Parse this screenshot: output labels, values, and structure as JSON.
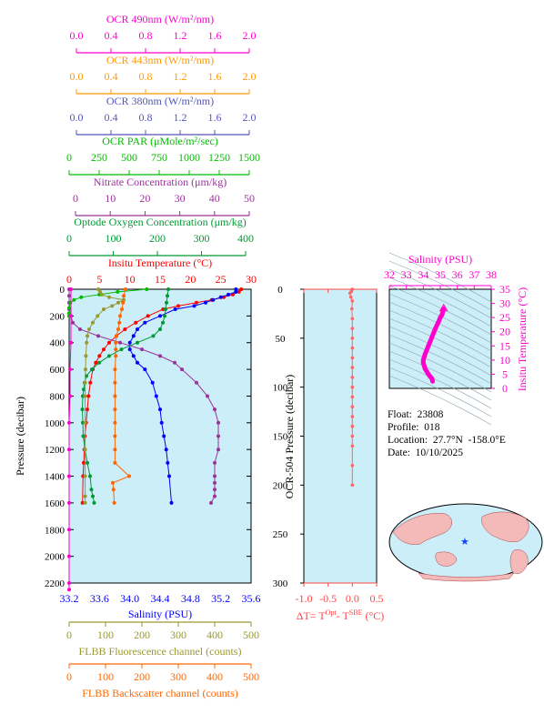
{
  "colors": {
    "ocr490": "#ff00cc",
    "ocr443": "#ff9900",
    "ocr380": "#5555bb",
    "par": "#00bb00",
    "nitrate": "#993399",
    "oxygen": "#009933",
    "temperature": "#ff0000",
    "salinity": "#0000ff",
    "fluor": "#999933",
    "backscatter": "#ff6600",
    "plot_bg": "#cceef8"
  },
  "top_axes": [
    {
      "key": "ocr490",
      "label": "OCR 490nm (W/m²/nm)",
      "ticks": [
        "0.0",
        "0.4",
        "0.8",
        "1.2",
        "1.6",
        "2.0"
      ]
    },
    {
      "key": "ocr443",
      "label": "OCR 443nm (W/m²/nm)",
      "ticks": [
        "0.0",
        "0.4",
        "0.8",
        "1.2",
        "1.6",
        "2.0"
      ]
    },
    {
      "key": "ocr380",
      "label": "OCR 380nm (W/m²/nm)",
      "ticks": [
        "0.0",
        "0.4",
        "0.8",
        "1.2",
        "1.6",
        "2.0"
      ]
    },
    {
      "key": "par",
      "label": "OCR PAR (μMole/m²/sec)",
      "ticks": [
        "0",
        "250",
        "500",
        "750",
        "1000",
        "1250",
        "1500"
      ]
    },
    {
      "key": "nitrate",
      "label": "Nitrate Concentration (μm/kg)",
      "ticks": [
        "0",
        "10",
        "20",
        "30",
        "40",
        "50"
      ]
    },
    {
      "key": "oxygen",
      "label": "Optode Oxygen Concentration (μm/kg)",
      "ticks": [
        "0",
        "100",
        "200",
        "300",
        "400"
      ]
    },
    {
      "key": "temperature",
      "label": "Insitu Temperature (°C)",
      "ticks": [
        "0",
        "5",
        "10",
        "15",
        "20",
        "25",
        "30"
      ]
    }
  ],
  "bottom_axes": [
    {
      "key": "salinity",
      "label": "Salinity (PSU)",
      "ticks": [
        "33.2",
        "33.6",
        "34.0",
        "34.4",
        "34.8",
        "35.2",
        "35.6"
      ]
    },
    {
      "key": "fluor",
      "label": "FLBB Fluorescence channel (counts)",
      "ticks": [
        "0",
        "100",
        "200",
        "300",
        "400",
        "500"
      ]
    },
    {
      "key": "backscatter",
      "label": "FLBB Backscatter channel (counts)",
      "ticks": [
        "0",
        "100",
        "200",
        "300",
        "400",
        "500"
      ]
    }
  ],
  "left_axis": {
    "label": "Pressure (decibar)",
    "ticks": [
      "0",
      "200",
      "400",
      "600",
      "800",
      "1000",
      "1200",
      "1400",
      "1600",
      "1800",
      "2000",
      "2200"
    ]
  },
  "mid_panel": {
    "ylabel": "OCR-504 Pressure (decibar)",
    "yticks": [
      "0",
      "50",
      "100",
      "150",
      "200",
      "250",
      "300"
    ],
    "xticks": [
      "-1.0",
      "-0.5",
      "0.0",
      "0.5"
    ],
    "xlabel_parts": [
      "ΔT= T",
      "Opt",
      "- T",
      "SBE",
      " (°C)"
    ]
  },
  "ts_panel": {
    "title": "Salinity (PSU)",
    "xticks": [
      "32",
      "33",
      "34",
      "35",
      "36",
      "37",
      "38"
    ],
    "yticks": [
      "0",
      "5",
      "10",
      "15",
      "20",
      "25",
      "30",
      "35"
    ],
    "ylabel": "Insitu Temperature (°C)"
  },
  "info": {
    "float": "Float:  23808",
    "profile": "Profile:  018",
    "location": "Location:  27.7°N  -158.0°E",
    "date": "Date:  10/10/2025"
  },
  "chart_data": [
    {
      "type": "line",
      "y_axis": "Pressure (decibar)",
      "ylim": [
        2200,
        0
      ],
      "series": [
        {
          "name": "Insitu Temperature (°C)",
          "x_range": [
            0,
            30
          ],
          "x": [
            28.4,
            28.0,
            27.0,
            25.5,
            23.5,
            21.0,
            18.0,
            15.5,
            13.0,
            11.0,
            9.2,
            7.8,
            6.6,
            5.7,
            5.0,
            4.4,
            3.9,
            3.5,
            3.2,
            3.0,
            2.8,
            2.6,
            2.5,
            2.4,
            2.3,
            2.2
          ],
          "y": [
            0,
            20,
            40,
            60,
            80,
            100,
            125,
            150,
            200,
            250,
            300,
            350,
            400,
            450,
            500,
            550,
            600,
            700,
            800,
            900,
            1000,
            1100,
            1200,
            1300,
            1400,
            1600
          ]
        },
        {
          "name": "Salinity (PSU)",
          "x_range": [
            33.2,
            35.6
          ],
          "x": [
            35.4,
            35.4,
            35.3,
            35.2,
            35.1,
            35.0,
            34.85,
            34.6,
            34.4,
            34.2,
            34.1,
            34.05,
            34.0,
            34.0,
            34.05,
            34.1,
            34.2,
            34.3,
            34.35,
            34.4,
            34.42,
            34.45,
            34.48,
            34.5,
            34.52,
            34.55
          ],
          "y": [
            0,
            20,
            40,
            60,
            80,
            100,
            125,
            150,
            200,
            250,
            300,
            350,
            400,
            450,
            500,
            550,
            600,
            700,
            800,
            900,
            1000,
            1100,
            1200,
            1300,
            1400,
            1600
          ]
        },
        {
          "name": "Nitrate Concentration (μm/kg)",
          "x_range": [
            0,
            50
          ],
          "x": [
            0,
            0,
            0,
            0,
            0.5,
            1,
            3,
            8,
            14,
            20,
            25,
            29,
            31,
            35,
            38,
            40,
            41,
            41,
            41,
            40,
            40,
            40,
            40,
            40,
            39
          ],
          "y": [
            0,
            50,
            100,
            150,
            200,
            250,
            300,
            350,
            400,
            450,
            500,
            550,
            600,
            700,
            800,
            900,
            1000,
            1100,
            1200,
            1300,
            1400,
            1450,
            1500,
            1550,
            1600
          ]
        },
        {
          "name": "Optode Oxygen Concentration (μm/kg)",
          "x_range": [
            0,
            400
          ],
          "x": [
            218,
            216,
            214,
            212,
            210,
            206,
            200,
            185,
            150,
            115,
            88,
            66,
            50,
            38,
            34,
            32,
            30,
            29,
            30,
            31,
            35,
            40,
            46,
            49,
            52,
            55
          ],
          "y": [
            0,
            50,
            100,
            150,
            200,
            250,
            300,
            350,
            400,
            450,
            500,
            550,
            600,
            650,
            700,
            750,
            800,
            900,
            1000,
            1100,
            1200,
            1300,
            1400,
            1500,
            1550,
            1600
          ]
        },
        {
          "name": "OCR PAR (μMole/m²/sec)",
          "x_range": [
            0,
            1500
          ],
          "x": [
            640,
            400,
            250,
            100,
            40,
            10,
            0,
            0,
            0
          ],
          "y": [
            0,
            20,
            40,
            60,
            80,
            100,
            140,
            180,
            200
          ]
        },
        {
          "name": "OCR 490nm (W/m²/nm)",
          "x_range": [
            0,
            2
          ],
          "x": [
            0.02,
            0.02,
            0.02,
            0.01,
            0.01,
            0,
            0,
            0,
            0,
            0,
            0,
            0,
            0
          ],
          "y": [
            0,
            200,
            400,
            600,
            800,
            1000,
            1200,
            1400,
            1600,
            1800,
            2000,
            2200,
            2250
          ]
        },
        {
          "name": "FLBB Fluorescence channel (counts)",
          "x_range": [
            0,
            500
          ],
          "x": [
            80,
            85,
            90,
            110,
            150,
            135,
            118,
            95,
            78,
            65,
            55,
            50,
            48,
            46,
            45,
            44,
            44,
            44,
            44,
            44,
            44,
            44
          ],
          "y": [
            0,
            20,
            40,
            60,
            80,
            100,
            125,
            150,
            200,
            250,
            300,
            350,
            400,
            500,
            600,
            700,
            800,
            1000,
            1200,
            1400,
            1550,
            1600
          ]
        },
        {
          "name": "FLBB Backscatter channel (counts)",
          "x_range": [
            0,
            500
          ],
          "x": [
            155,
            150,
            148,
            145,
            140,
            138,
            135,
            130,
            128,
            128,
            128,
            126,
            126,
            126,
            126,
            126,
            126,
            126,
            126,
            165,
            120,
            122,
            124
          ],
          "y": [
            0,
            50,
            100,
            150,
            200,
            250,
            300,
            350,
            400,
            450,
            500,
            600,
            700,
            800,
            900,
            1000,
            1100,
            1200,
            1300,
            1400,
            1450,
            1500,
            1600
          ]
        }
      ]
    },
    {
      "type": "line",
      "x_axis": "ΔT (°C)",
      "xlim": [
        -1.0,
        0.5
      ],
      "y_axis": "OCR-504 Pressure (decibar)",
      "ylim": [
        300,
        0
      ],
      "series": [
        {
          "x": [
            0.0,
            -0.02,
            -0.05,
            -0.03,
            0.0,
            -0.01,
            0.0,
            0.0,
            0.0,
            0.0,
            0.0,
            0.0,
            0.0,
            0.0,
            0.0,
            0.0,
            0.0,
            0.0,
            0.0,
            0.0,
            0.0,
            0.0
          ],
          "y": [
            0,
            2,
            4,
            8,
            12,
            20,
            30,
            40,
            50,
            60,
            70,
            80,
            90,
            100,
            110,
            120,
            130,
            140,
            150,
            160,
            180,
            200
          ]
        }
      ]
    },
    {
      "type": "scatter",
      "x_axis": "Salinity (PSU)",
      "xlim": [
        32,
        38
      ],
      "y_axis": "Insitu Temperature (°C)",
      "ylim": [
        0,
        35
      ],
      "series": [
        {
          "x": [
            35.2,
            35.1,
            35.0,
            34.9,
            34.7,
            34.5,
            34.3,
            34.1,
            34.0,
            34.0,
            34.05,
            34.1,
            34.2,
            34.3,
            34.4,
            34.5,
            34.55
          ],
          "y": [
            28,
            26,
            25,
            23.5,
            21,
            18,
            15,
            12,
            10,
            9,
            8,
            7,
            6,
            5,
            4.2,
            3.5,
            2.5
          ]
        }
      ]
    }
  ]
}
